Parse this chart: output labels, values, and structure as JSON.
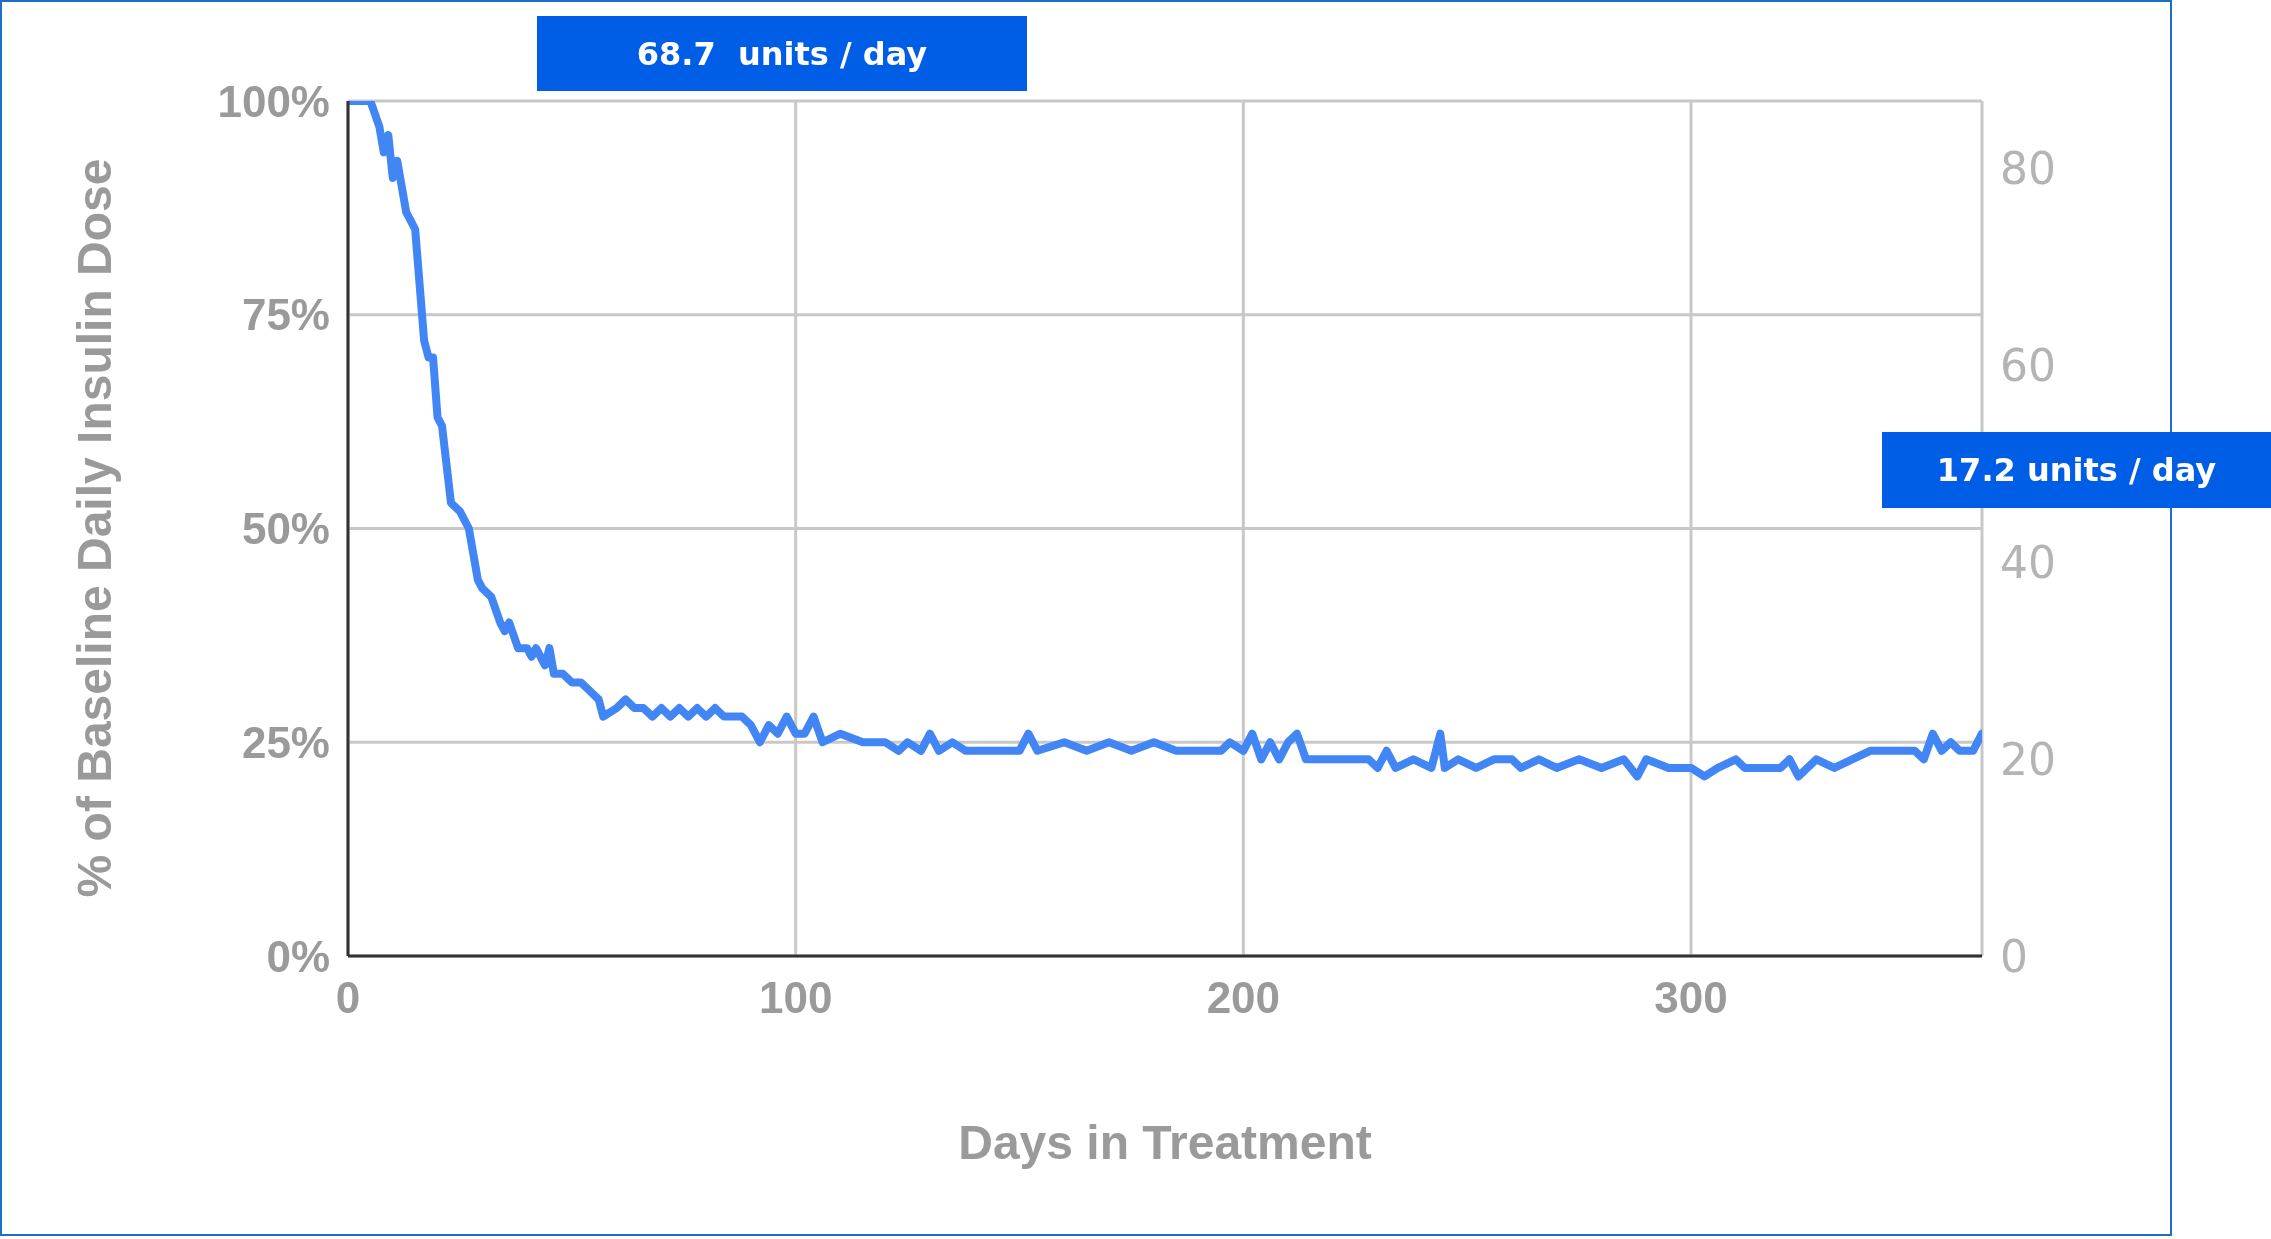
{
  "chart_data": {
    "type": "line",
    "xlabel": "Days in Treatment",
    "ylabel": "% of Baseline Daily Insulin Dose",
    "annotations": [
      "68.7  units / day",
      "17.2 units / day"
    ],
    "x": [
      0,
      5,
      7,
      8,
      9,
      10,
      11,
      13,
      14,
      15,
      17,
      18,
      19,
      20,
      21,
      23,
      25,
      27,
      29,
      30,
      32,
      34,
      35,
      36,
      38,
      40,
      41,
      42,
      44,
      45,
      46,
      48,
      50,
      52,
      54,
      56,
      57,
      60,
      62,
      64,
      66,
      68,
      70,
      72,
      74,
      76,
      78,
      80,
      82,
      84,
      86,
      88,
      90,
      92,
      94,
      96,
      98,
      100,
      102,
      104,
      106,
      110,
      115,
      120,
      123,
      125,
      128,
      130,
      132,
      135,
      138,
      140,
      145,
      150,
      152,
      154,
      160,
      165,
      170,
      175,
      180,
      185,
      190,
      195,
      197,
      200,
      202,
      204,
      206,
      208,
      210,
      212,
      214,
      220,
      228,
      230,
      232,
      234,
      238,
      242,
      244,
      245,
      248,
      252,
      256,
      260,
      262,
      266,
      270,
      275,
      280,
      285,
      288,
      290,
      295,
      300,
      303,
      306,
      310,
      312,
      320,
      322,
      324,
      328,
      332,
      336,
      340,
      346,
      350,
      352,
      354,
      356,
      358,
      360,
      363,
      365
    ],
    "series": [
      {
        "color": "#4285f4",
        "values": [
          100,
          100,
          97,
          94,
          96,
          91,
          93,
          87,
          86,
          85,
          72,
          70,
          70,
          63,
          62,
          53,
          52,
          50,
          44,
          43,
          42,
          39,
          38,
          39,
          36,
          36,
          35,
          36,
          34,
          36,
          33,
          33,
          32,
          32,
          31,
          30,
          28,
          29,
          30,
          29,
          29,
          28,
          29,
          28,
          29,
          28,
          29,
          28,
          29,
          28,
          28,
          28,
          27,
          25,
          27,
          26,
          28,
          26,
          26,
          28,
          25,
          26,
          25,
          25,
          24,
          25,
          24,
          26,
          24,
          25,
          24,
          24,
          24,
          24,
          26,
          24,
          25,
          24,
          25,
          24,
          25,
          24,
          24,
          24,
          25,
          24,
          26,
          23,
          25,
          23,
          25,
          26,
          23,
          23,
          23,
          22,
          24,
          22,
          23,
          22,
          26,
          22,
          23,
          22,
          23,
          23,
          22,
          23,
          22,
          23,
          22,
          23,
          21,
          23,
          22,
          22,
          21,
          22,
          23,
          22,
          22,
          23,
          21,
          23,
          22,
          23,
          24,
          24,
          24,
          23,
          26,
          24,
          25,
          24,
          24,
          26
        ]
      }
    ],
    "xlim": [
      0,
      365
    ],
    "xticks": [
      0,
      100,
      200,
      300
    ],
    "ylim": [
      0,
      100
    ],
    "yticks": [
      {
        "value": 0,
        "label": "0%"
      },
      {
        "value": 25,
        "label": "25%"
      },
      {
        "value": 50,
        "label": "50%"
      },
      {
        "value": 75,
        "label": "75%"
      },
      {
        "value": 100,
        "label": "100%"
      }
    ],
    "y2lim": [
      0,
      86.8
    ],
    "y2ticks": [
      0,
      20,
      40,
      60,
      80
    ],
    "grid": true,
    "legend": false,
    "marker": "none",
    "line_style": "solid"
  }
}
